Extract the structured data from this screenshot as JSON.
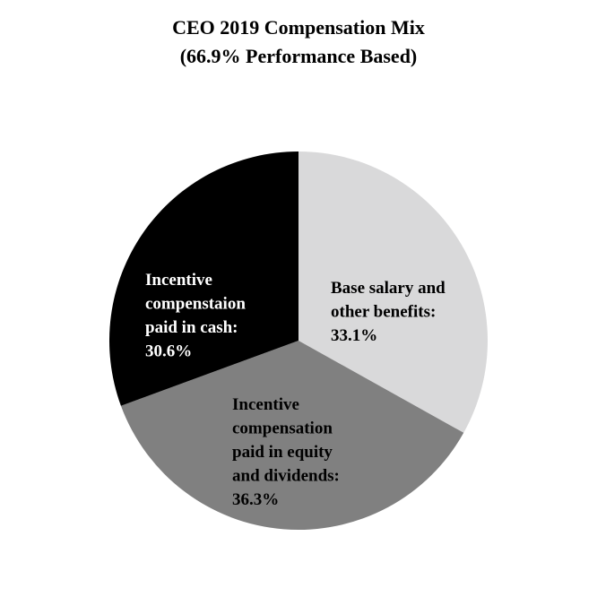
{
  "chart_data": {
    "type": "pie",
    "title": [
      "CEO 2019 Compensation Mix",
      "(66.9% Performance Based)"
    ],
    "slices": [
      {
        "value": 33.1,
        "color": "#d9d9da",
        "label_color": "#000000",
        "label_lines": [
          "Base salary and",
          "other benefits:",
          "33.1%"
        ]
      },
      {
        "value": 36.3,
        "color": "#808080",
        "label_color": "#000000",
        "label_lines": [
          "Incentive",
          "compensation",
          "paid in equity",
          "and dividends:",
          "36.3%"
        ]
      },
      {
        "value": 30.6,
        "color": "#000000",
        "label_color": "#ffffff",
        "label_lines": [
          "Incentive",
          "compenstaion",
          "paid in cash:",
          "30.6%"
        ]
      }
    ],
    "start_angle": "12 o'clock",
    "direction": "clockwise",
    "legend": "none"
  }
}
